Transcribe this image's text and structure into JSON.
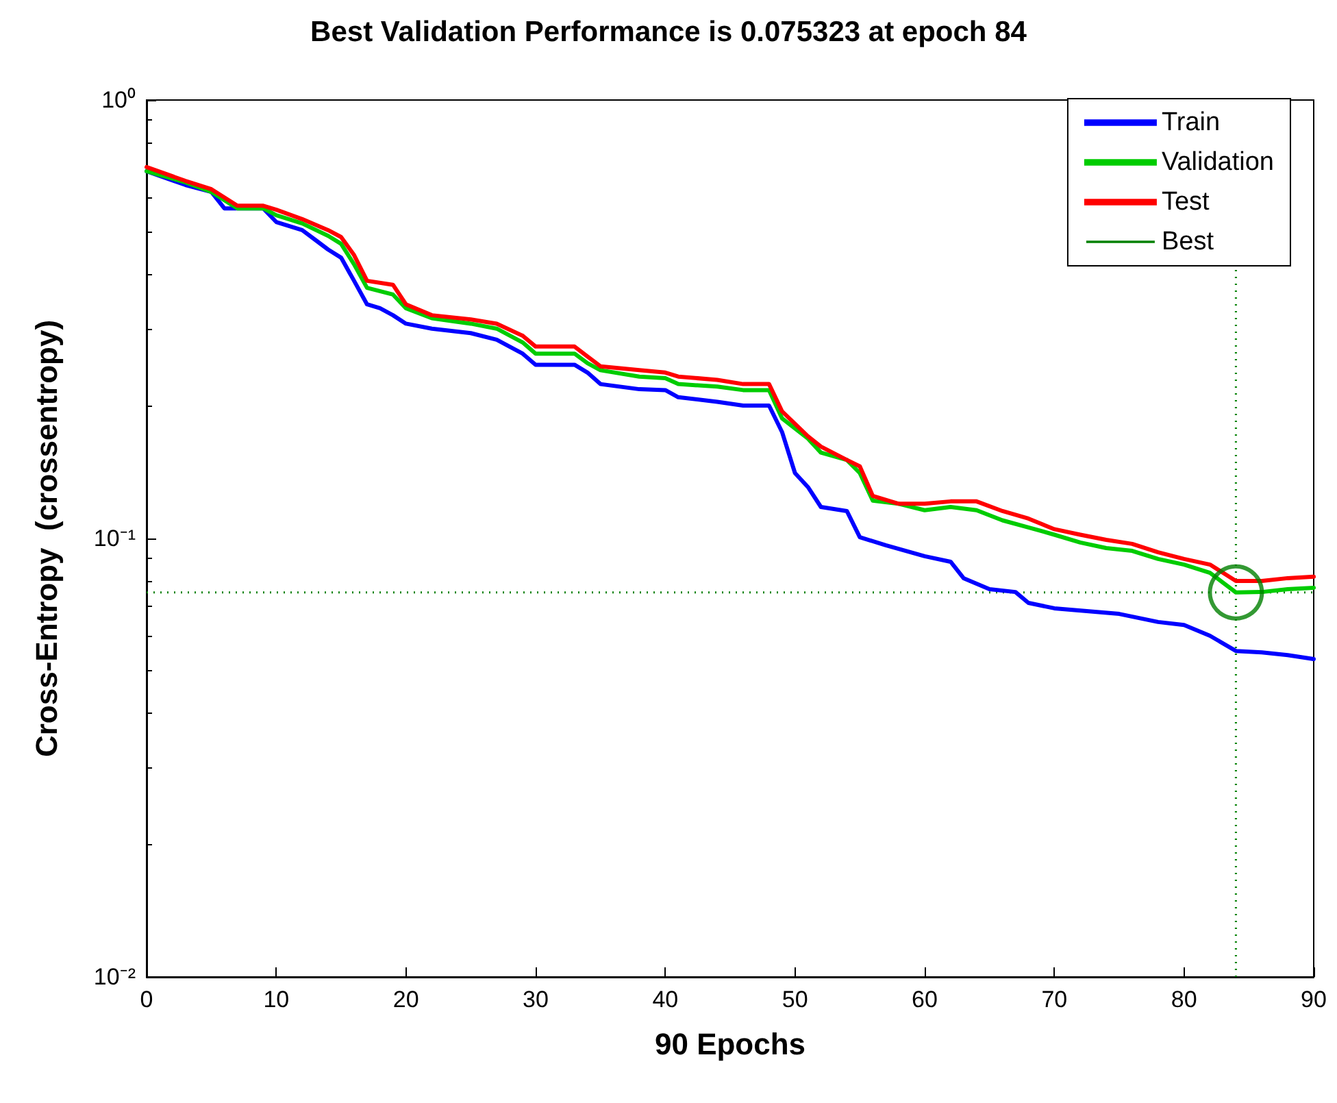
{
  "chart_data": {
    "type": "line",
    "title": "Best Validation Performance is 0.075323 at epoch 84",
    "xlabel": "90 Epochs",
    "ylabel": "Cross-Entropy  (crossentropy)",
    "log": "y",
    "xlim": [
      0,
      90
    ],
    "xticks": [
      0,
      10,
      20,
      30,
      40,
      50,
      60,
      70,
      80,
      90
    ],
    "ylim": [
      0.01,
      1
    ],
    "yticks": [
      {
        "value": 0.01,
        "label": "10⁻²"
      },
      {
        "value": 0.1,
        "label": "10⁻¹"
      },
      {
        "value": 1,
        "label": "10⁰"
      }
    ],
    "grid": false,
    "legend": "top right",
    "marker": "none",
    "line_style": "solid",
    "series": [
      {
        "name": "Train",
        "color": "#0000ff",
        "x": [
          0,
          3,
          5,
          6,
          9,
          10,
          12,
          13,
          14,
          15,
          16,
          17,
          18,
          19,
          20,
          22,
          25,
          27,
          29,
          30,
          33,
          34,
          35,
          38,
          40,
          41,
          44,
          46,
          48,
          49,
          50,
          51,
          52,
          54,
          55,
          57,
          60,
          62,
          63,
          65,
          67,
          68,
          70,
          75,
          78,
          80,
          82,
          84,
          86,
          88,
          90
        ],
        "values": [
          0.688,
          0.64,
          0.617,
          0.566,
          0.566,
          0.527,
          0.505,
          0.48,
          0.456,
          0.437,
          0.387,
          0.342,
          0.335,
          0.323,
          0.309,
          0.301,
          0.294,
          0.284,
          0.264,
          0.249,
          0.249,
          0.239,
          0.225,
          0.219,
          0.218,
          0.21,
          0.205,
          0.201,
          0.201,
          0.175,
          0.141,
          0.131,
          0.118,
          0.1155,
          0.1007,
          0.0965,
          0.0911,
          0.0885,
          0.0812,
          0.0766,
          0.0755,
          0.0713,
          0.0693,
          0.0673,
          0.0645,
          0.0635,
          0.06,
          0.0554,
          0.055,
          0.0542,
          0.0531
        ]
      },
      {
        "name": "Validation",
        "color": "#00cc00",
        "x": [
          0,
          3,
          5,
          7,
          9,
          10,
          12,
          14,
          15,
          16,
          17,
          19,
          20,
          22,
          25,
          27,
          29,
          30,
          33,
          34,
          35,
          38,
          40,
          41,
          44,
          46,
          48,
          49,
          51,
          52,
          54,
          55,
          56,
          58,
          60,
          62,
          64,
          66,
          68,
          70,
          72,
          74,
          76,
          78,
          80,
          82,
          84,
          86,
          88,
          90
        ],
        "values": [
          0.688,
          0.649,
          0.617,
          0.566,
          0.566,
          0.546,
          0.523,
          0.49,
          0.47,
          0.422,
          0.373,
          0.36,
          0.335,
          0.318,
          0.309,
          0.301,
          0.28,
          0.264,
          0.264,
          0.251,
          0.242,
          0.234,
          0.232,
          0.225,
          0.222,
          0.218,
          0.218,
          0.188,
          0.169,
          0.157,
          0.151,
          0.141,
          0.122,
          0.12,
          0.116,
          0.118,
          0.116,
          0.11,
          0.106,
          0.102,
          0.0979,
          0.0951,
          0.0937,
          0.0898,
          0.0872,
          0.0835,
          0.075323,
          0.0755,
          0.0766,
          0.0772
        ]
      },
      {
        "name": "Test",
        "color": "#ff0000",
        "x": [
          0,
          3,
          5,
          7,
          9,
          10,
          12,
          14,
          15,
          16,
          17,
          19,
          20,
          22,
          25,
          27,
          29,
          30,
          33,
          34,
          35,
          38,
          40,
          41,
          44,
          46,
          48,
          49,
          51,
          52,
          54,
          55,
          56,
          58,
          60,
          62,
          64,
          66,
          68,
          70,
          72,
          74,
          76,
          78,
          80,
          82,
          84,
          86,
          88,
          90
        ],
        "values": [
          0.703,
          0.654,
          0.626,
          0.574,
          0.574,
          0.562,
          0.535,
          0.505,
          0.487,
          0.443,
          0.387,
          0.379,
          0.342,
          0.323,
          0.316,
          0.309,
          0.29,
          0.274,
          0.274,
          0.26,
          0.247,
          0.242,
          0.239,
          0.234,
          0.23,
          0.225,
          0.225,
          0.195,
          0.171,
          0.162,
          0.151,
          0.146,
          0.125,
          0.12,
          0.12,
          0.1215,
          0.1215,
          0.1155,
          0.111,
          0.105,
          0.102,
          0.0993,
          0.0972,
          0.093,
          0.0898,
          0.0872,
          0.08,
          0.08,
          0.0812,
          0.0818
        ]
      },
      {
        "type": "scatter",
        "color": "#008000",
        "marker": "circle",
        "x": [
          84
        ],
        "values": [
          0.075323
        ]
      }
    ],
    "ref_lines": [
      {
        "axis": "x",
        "value": 84,
        "label": "Best",
        "color": "#008000",
        "line_style": "dotted"
      },
      {
        "axis": "y",
        "value": 0.075323,
        "color": "#008000",
        "line_style": "dotted"
      }
    ]
  }
}
